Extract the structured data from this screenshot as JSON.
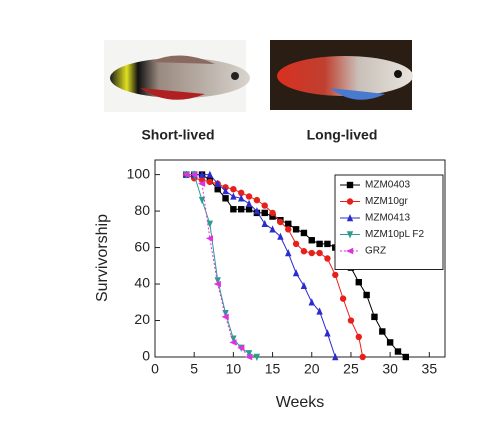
{
  "captions": [
    "Short-lived",
    "Long-lived"
  ],
  "chart_data": {
    "type": "line",
    "xlabel": "Weeks",
    "ylabel": "Survivorship",
    "xlim": [
      0,
      37
    ],
    "ylim": [
      0,
      108
    ],
    "xticks": [
      0,
      5,
      10,
      15,
      20,
      25,
      30,
      35
    ],
    "yticks": [
      0,
      20,
      40,
      60,
      80,
      100
    ],
    "legend": "upper right",
    "series": [
      {
        "name": "MZM0403",
        "color": "#000000",
        "marker": "square",
        "dash": "solid",
        "x": [
          4,
          5,
          6,
          7,
          8,
          9,
          10,
          11,
          12,
          13,
          14,
          15,
          16,
          17,
          18,
          19,
          20,
          21,
          22,
          23,
          24,
          25,
          26,
          27,
          28,
          29,
          30,
          31,
          32
        ],
        "values": [
          100,
          100,
          100,
          97,
          92,
          87,
          81,
          81,
          81,
          79,
          79,
          77,
          75,
          73,
          70,
          68,
          64,
          62,
          62,
          60,
          57,
          49,
          41,
          34,
          22,
          14,
          8,
          3,
          0
        ]
      },
      {
        "name": "MZM10gr",
        "color": "#e8201a",
        "marker": "circle",
        "dash": "solid",
        "x": [
          4,
          5,
          6,
          7,
          8,
          9,
          10,
          11,
          12,
          13,
          14,
          15,
          16,
          17,
          18,
          19,
          20,
          21,
          22,
          23,
          24,
          25,
          26,
          26.5
        ],
        "values": [
          100,
          98,
          97,
          96,
          95,
          93,
          92,
          90,
          88,
          86,
          83,
          79,
          74,
          70,
          62,
          58,
          57,
          57,
          54,
          45,
          32,
          20,
          11,
          0
        ]
      },
      {
        "name": "MZM0413",
        "color": "#2b2bd0",
        "marker": "triangle-up",
        "dash": "solid",
        "x": [
          4,
          5,
          6,
          7,
          8,
          9,
          10,
          11,
          12,
          13,
          14,
          15,
          16,
          17,
          18,
          19,
          20,
          21,
          22,
          23
        ],
        "values": [
          100,
          100,
          100,
          100,
          95,
          91,
          88,
          87,
          84,
          80,
          73,
          70,
          66,
          57,
          46,
          39,
          30,
          25,
          13,
          0
        ]
      },
      {
        "name": "MZM10pL F2",
        "color": "#2a9d8f",
        "marker": "triangle-down",
        "dash": "solid",
        "x": [
          4,
          5,
          6,
          7,
          8,
          9,
          10,
          11,
          12,
          13
        ],
        "values": [
          100,
          100,
          86,
          73,
          42,
          24,
          10,
          5,
          2,
          0
        ]
      },
      {
        "name": "GRZ",
        "color": "#e030e0",
        "marker": "triangle-left",
        "dash": "dotted",
        "x": [
          4,
          5,
          6,
          7,
          8,
          9,
          10,
          11,
          12
        ],
        "values": [
          100,
          100,
          95,
          65,
          40,
          22,
          8,
          5,
          0
        ]
      }
    ]
  }
}
